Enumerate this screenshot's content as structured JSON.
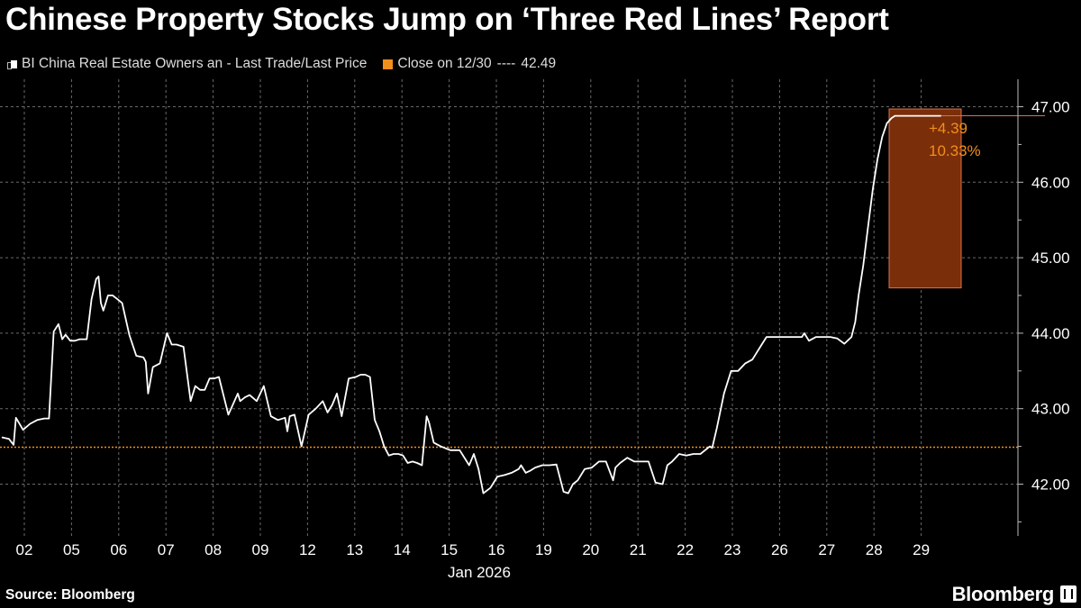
{
  "title": "Chinese Property Stocks Jump on ‘Three Red Lines’ Report",
  "legend": {
    "series_label": "BI China Real Estate Owners an - Last Trade/Last Price",
    "reference_label": "Close on 12/30",
    "reference_dashes": "----",
    "reference_value": "42.49"
  },
  "annotation": {
    "change": "+4.39",
    "percent": "10.33%"
  },
  "footer": {
    "source": "Source: Bloomberg",
    "brand": "Bloomberg"
  },
  "colors": {
    "background": "#000000",
    "line": "#ffffff",
    "reference": "#f28e1c",
    "annotation_fill": "#7a2e09",
    "annotation_border": "#d9734a",
    "annotation_text": "#f28e1c",
    "grid": "#6a6a6a"
  },
  "chart_data": {
    "type": "line",
    "xlabel": "Jan 2026",
    "ylabel": "",
    "ylim": [
      41.5,
      47.1
    ],
    "yticks": [
      42.0,
      43.0,
      44.0,
      45.0,
      46.0,
      47.0
    ],
    "ytick_labels": [
      "42.00",
      "43.00",
      "44.00",
      "45.00",
      "46.00",
      "47.00"
    ],
    "categories": [
      "02",
      "05",
      "06",
      "07",
      "08",
      "09",
      "12",
      "13",
      "14",
      "15",
      "16",
      "19",
      "20",
      "21",
      "22",
      "23",
      "26",
      "27",
      "28",
      "29"
    ],
    "x_group_label": "Jan 2026",
    "grid": true,
    "reference_line": {
      "label": "Close on 12/30",
      "value": 42.49
    },
    "highlight": {
      "from": 44.6,
      "to": 46.97,
      "change": 4.39,
      "percent": 10.33
    },
    "series": [
      {
        "name": "BI China Real Estate Owners an - Last Trade/Last Price",
        "x": [
          0,
          0.15,
          0.25,
          0.3,
          0.45,
          0.6,
          0.75,
          0.9,
          1.0,
          1.1,
          1.2,
          1.28,
          1.35,
          1.45,
          1.55,
          1.65,
          1.8,
          1.9,
          2.0,
          2.05,
          2.1,
          2.15,
          2.25,
          2.35,
          2.45,
          2.55,
          2.7,
          2.85,
          3.0,
          3.05,
          3.1,
          3.2,
          3.35,
          3.5,
          3.6,
          3.7,
          3.85,
          4.0,
          4.1,
          4.2,
          4.3,
          4.4,
          4.5,
          4.6,
          4.8,
          5.0,
          5.05,
          5.15,
          5.25,
          5.4,
          5.55,
          5.7,
          5.85,
          6.0,
          6.05,
          6.1,
          6.2,
          6.35,
          6.5,
          6.65,
          6.8,
          6.9,
          7.0,
          7.1,
          7.2,
          7.35,
          7.5,
          7.6,
          7.7,
          7.8,
          7.9,
          8.0,
          8.1,
          8.2,
          8.3,
          8.4,
          8.5,
          8.6,
          8.7,
          8.8,
          8.9,
          9.0,
          9.05,
          9.15,
          9.3,
          9.5,
          9.7,
          9.9,
          10.0,
          10.1,
          10.2,
          10.35,
          10.5,
          10.65,
          10.8,
          10.95,
          11.0,
          11.1,
          11.2,
          11.3,
          11.45,
          11.6,
          11.75,
          11.9,
          12.0,
          12.1,
          12.2,
          12.35,
          12.5,
          12.65,
          12.8,
          12.95,
          13.0,
          13.1,
          13.25,
          13.4,
          13.55,
          13.7,
          13.85,
          14.0,
          14.1,
          14.2,
          14.35,
          14.5,
          14.65,
          14.8,
          15.0,
          15.05,
          15.15,
          15.3,
          15.45,
          15.6,
          15.75,
          15.9,
          16.0,
          16.1,
          16.2,
          16.35,
          16.5,
          16.65,
          16.8,
          16.95,
          17.0,
          17.1,
          17.25,
          17.4,
          17.55,
          17.7,
          17.85,
          18.0,
          18.08,
          18.15,
          18.25,
          18.35,
          18.45,
          18.55,
          18.65,
          18.75,
          18.85,
          18.92,
          19.0,
          19.02,
          19.1,
          19.5,
          19.9
        ],
        "values": [
          42.62,
          42.6,
          42.52,
          42.88,
          42.72,
          42.8,
          42.85,
          42.87,
          42.87,
          44.02,
          44.12,
          43.92,
          43.98,
          43.9,
          43.9,
          43.92,
          43.92,
          44.45,
          44.72,
          44.75,
          44.4,
          44.3,
          44.5,
          44.5,
          44.45,
          44.4,
          43.98,
          43.7,
          43.68,
          43.62,
          43.2,
          43.55,
          43.6,
          44.0,
          43.85,
          43.85,
          43.82,
          43.1,
          43.3,
          43.25,
          43.25,
          43.4,
          43.4,
          43.42,
          42.92,
          43.2,
          43.1,
          43.15,
          43.18,
          43.1,
          43.3,
          42.9,
          42.85,
          42.88,
          42.7,
          42.9,
          42.92,
          42.5,
          42.92,
          43.0,
          43.1,
          42.95,
          43.05,
          43.2,
          42.9,
          43.4,
          43.42,
          43.45,
          43.45,
          43.42,
          42.85,
          42.7,
          42.5,
          42.38,
          42.4,
          42.4,
          42.38,
          42.28,
          42.3,
          42.28,
          42.25,
          42.9,
          42.82,
          42.55,
          42.5,
          42.45,
          42.45,
          42.25,
          42.4,
          42.2,
          41.88,
          41.95,
          42.1,
          42.12,
          42.15,
          42.2,
          42.25,
          42.15,
          42.18,
          42.22,
          42.25,
          42.25,
          42.26,
          41.9,
          41.88,
          42.0,
          42.05,
          42.2,
          42.22,
          42.3,
          42.3,
          42.05,
          42.22,
          42.28,
          42.35,
          42.3,
          42.3,
          42.3,
          42.02,
          42.0,
          42.25,
          42.3,
          42.4,
          42.38,
          42.4,
          42.4,
          42.5,
          42.48,
          42.75,
          43.2,
          43.5,
          43.5,
          43.6,
          43.65,
          43.75,
          43.85,
          43.95,
          43.95,
          43.95,
          43.95,
          43.95,
          43.95,
          44.0,
          43.9,
          43.95,
          43.95,
          43.95,
          43.93,
          43.86,
          43.95,
          44.15,
          44.5,
          44.9,
          45.4,
          45.9,
          46.3,
          46.6,
          46.78,
          46.85,
          46.88,
          46.88,
          46.88,
          46.88,
          46.88,
          46.88
        ]
      }
    ]
  }
}
